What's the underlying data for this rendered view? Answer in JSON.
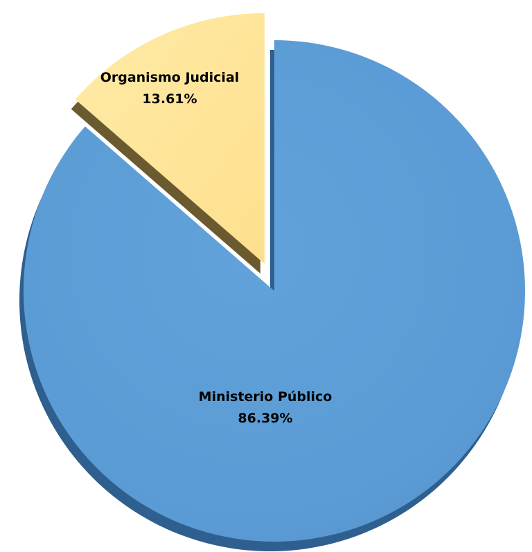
{
  "chart_data": {
    "type": "pie",
    "exploded": "Organismo Judicial",
    "slices": [
      {
        "name": "Ministerio Público",
        "value": 86.39,
        "value_label": "86.39%",
        "color": "#5b9bd5",
        "side_color": "#2e5f8e"
      },
      {
        "name": "Organismo Judicial",
        "value": 13.61,
        "value_label": "13.61%",
        "color": "#ffe699",
        "side_color": "#6b5a30"
      }
    ]
  }
}
